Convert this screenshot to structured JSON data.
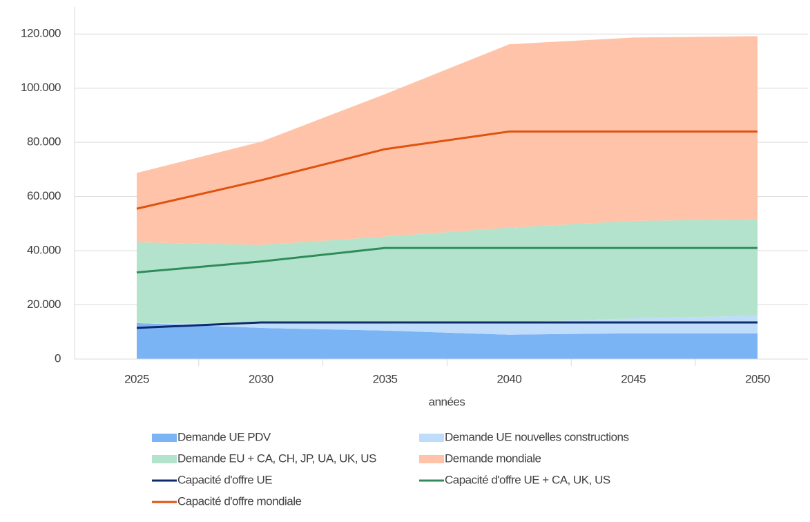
{
  "chart_data": {
    "type": "area",
    "xlabel": "années",
    "categories": [
      "2025",
      "2030",
      "2035",
      "2040",
      "2045",
      "2050"
    ],
    "series": [
      {
        "name": "Demande UE PDV",
        "color": "#7ab4f5",
        "values": [
          13300,
          11500,
          10500,
          9000,
          9500,
          9500
        ]
      },
      {
        "name": "Demande UE nouvelles constructions",
        "color": "#c0dcfb",
        "values": [
          0,
          1500,
          2500,
          4500,
          5500,
          6500
        ]
      },
      {
        "name": "Demande EU + CA, CH, JP, UA, UK, US",
        "color": "#b3e3cc",
        "values": [
          29800,
          29100,
          32200,
          35000,
          36000,
          35600
        ]
      },
      {
        "name": "Demande mondiale",
        "color": "#fec3a8",
        "values": [
          25600,
          38100,
          52600,
          67700,
          67700,
          67600
        ]
      },
      {
        "name": "Capacité d'offre UE",
        "type": "line",
        "color": "#0d2a6b",
        "values": [
          11500,
          13500,
          13500,
          13500,
          13500,
          13500
        ]
      },
      {
        "name": "Capacité d'offre UE + CA, UK, US",
        "type": "line",
        "color": "#2f8c5a",
        "values": [
          32000,
          36000,
          41000,
          41000,
          41000,
          41000
        ]
      },
      {
        "name": "Capacité d'offre mondiale",
        "type": "line",
        "color": "#e0520f",
        "values": [
          55500,
          66000,
          77500,
          84000,
          84000,
          84000
        ]
      }
    ],
    "ylim": [
      0,
      130000
    ],
    "yticks": [
      0,
      {
        "value": 20000,
        "label": "20.000"
      },
      {
        "value": 40000,
        "label": "40.000"
      },
      {
        "value": 60000,
        "label": "60.000"
      },
      {
        "value": 80000,
        "label": "80.000"
      },
      {
        "value": 100000,
        "label": "100.000"
      },
      {
        "value": 120000,
        "label": "120.000"
      }
    ],
    "grid": true
  }
}
